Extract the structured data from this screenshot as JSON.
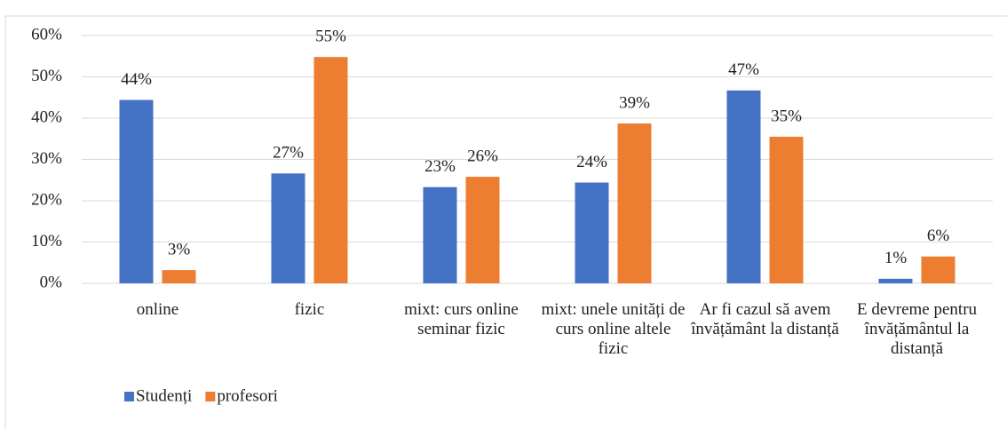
{
  "chart_data": {
    "type": "bar",
    "categories": [
      "online",
      "fizic",
      "mixt: curs online seminar fizic",
      "mixt: unele unități de curs online altele fizic",
      "Ar fi cazul să avem învățământ la distanță",
      "E devreme pentru învățământul la distanță"
    ],
    "series": [
      {
        "name": "Studenți",
        "color": "#4472c4",
        "values": [
          44.4,
          26.6,
          23.3,
          24.4,
          46.7,
          1.1
        ],
        "value_labels": [
          "44%",
          "27%",
          "23%",
          "24%",
          "47%",
          "1%"
        ]
      },
      {
        "name": "profesori",
        "color": "#ed7d31",
        "values": [
          3.2,
          54.8,
          25.8,
          38.7,
          35.5,
          6.5
        ],
        "value_labels": [
          "3%",
          "55%",
          "26%",
          "39%",
          "35%",
          "6%"
        ]
      }
    ],
    "ylim": [
      0,
      60
    ],
    "yticks": [
      {
        "value": 0,
        "label": "0%"
      },
      {
        "value": 10,
        "label": "10%"
      },
      {
        "value": 20,
        "label": "20%"
      },
      {
        "value": 30,
        "label": "30%"
      },
      {
        "value": 40,
        "label": "40%"
      },
      {
        "value": 50,
        "label": "50%"
      },
      {
        "value": 60,
        "label": "60%"
      }
    ],
    "grid": true,
    "legend": "bottom-left"
  }
}
